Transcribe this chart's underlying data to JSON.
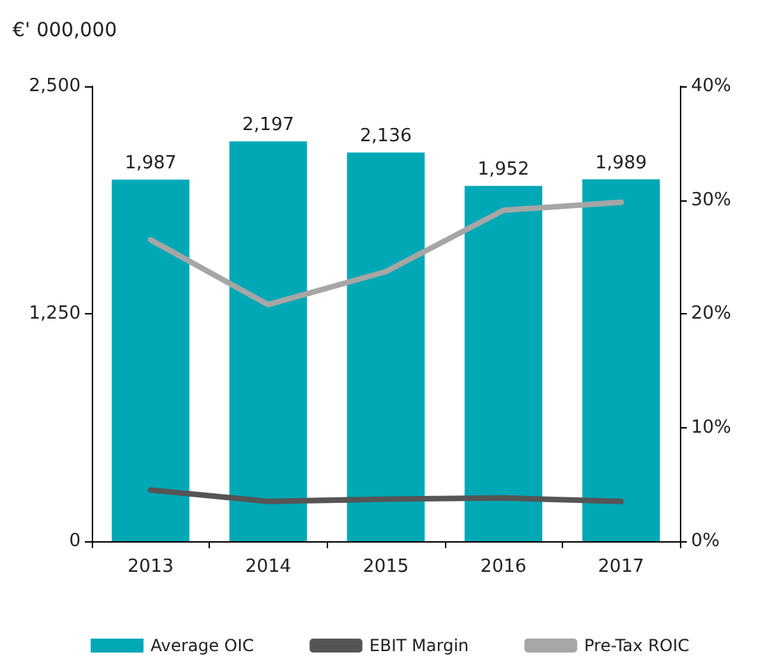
{
  "chart_data": {
    "type": "bar",
    "ylabel": "€' 000,000",
    "categories": [
      "2013",
      "2014",
      "2015",
      "2016",
      "2017"
    ],
    "series": [
      {
        "name": "Average OIC",
        "color": "#00a8b5",
        "values": [
          1987,
          2197,
          2136,
          1952,
          1989
        ],
        "value_labels": [
          "1,987",
          "2,197",
          "2,136",
          "1,952",
          "1,989"
        ]
      },
      {
        "name": "EBIT Margin",
        "type": "line",
        "axis": "y2",
        "color": "#555555",
        "values": [
          4.5,
          3.5,
          3.7,
          3.8,
          3.5
        ]
      },
      {
        "name": "Pre-Tax ROIC",
        "type": "line",
        "axis": "y2",
        "color": "#a6a6a6",
        "values": [
          26.5,
          20.8,
          23.7,
          29.1,
          29.8
        ]
      }
    ],
    "ylim": [
      0,
      2500
    ],
    "yticks": [
      {
        "value": 0,
        "label": "0"
      },
      {
        "value": 1250,
        "label": "1,250"
      },
      {
        "value": 2500,
        "label": "2,500"
      }
    ],
    "y2lim": [
      0,
      40
    ],
    "y2ticks": [
      {
        "value": 0,
        "label": "0%"
      },
      {
        "value": 10,
        "label": "10%"
      },
      {
        "value": 20,
        "label": "20%"
      },
      {
        "value": 30,
        "label": "30%"
      },
      {
        "value": 40,
        "label": "40%"
      }
    ],
    "grid": false,
    "legend": "bottom",
    "marker": "none",
    "line_style": "solid"
  }
}
